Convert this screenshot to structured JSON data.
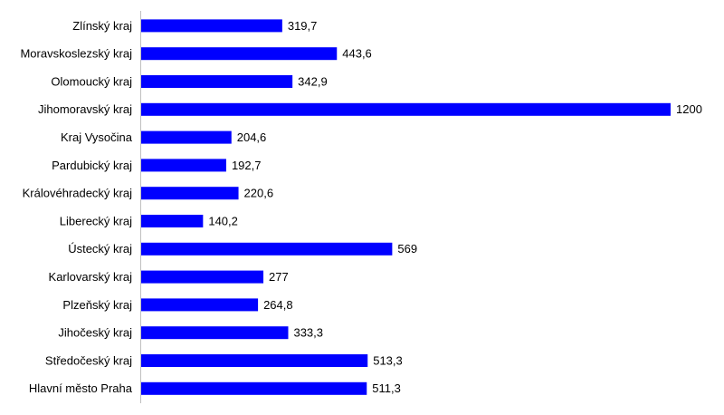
{
  "chart_data": {
    "type": "hbar",
    "color": "#0000ff",
    "categories": [
      "Zlínský kraj",
      "Moravskoslezský kraj",
      "Olomoucký kraj",
      "Jihomoravský kraj",
      "Kraj Vysočina",
      "Pardubický kraj",
      "Královéhradecký kraj",
      "Liberecký kraj",
      "Ústecký kraj",
      "Karlovarský kraj",
      "Plzeňský kraj",
      "Jihočeský kraj",
      "Středočeský kraj",
      "Hlavní město Praha"
    ],
    "values": [
      319.7,
      443.6,
      342.9,
      1200,
      204.6,
      192.7,
      220.6,
      140.2,
      569,
      277,
      264.8,
      333.3,
      513.3,
      511.3
    ],
    "value_labels": [
      "319,7",
      "443,6",
      "342,9",
      "1200",
      "204,6",
      "192,7",
      "220,6",
      "140,2",
      "569",
      "277",
      "264,8",
      "333,3",
      "513,3",
      "511,3"
    ]
  }
}
